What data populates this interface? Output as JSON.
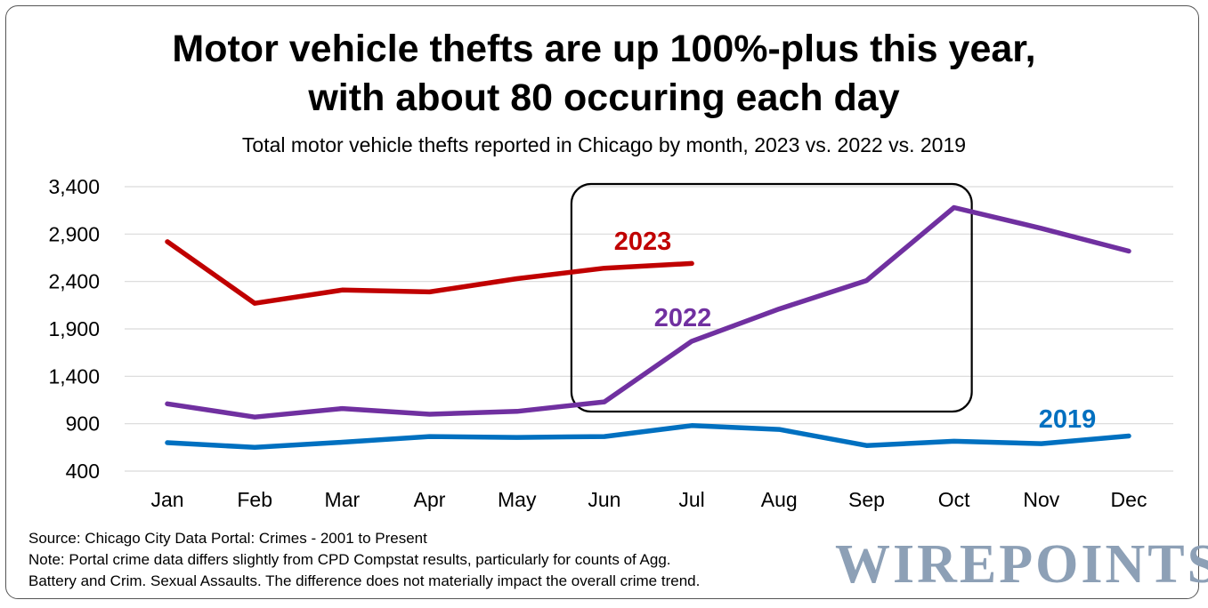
{
  "title_line1": "Motor vehicle thefts are up 100%-plus this year,",
  "title_line2": "with about 80 occuring each day",
  "subtitle": "Total motor vehicle thefts reported in Chicago by month, 2023 vs. 2022 vs. 2019",
  "footnotes": {
    "source": "Source: Chicago City Data Portal: Crimes - 2001 to Present",
    "note1": "Note: Portal crime data differs slightly from CPD Compstat results, particularly for counts of Agg.",
    "note2": "Battery and Crim. Sexual Assaults. The difference does not materially impact the overall crime trend."
  },
  "brand": "WIREPOINTS",
  "chart_data": {
    "type": "line",
    "categories": [
      "Jan",
      "Feb",
      "Mar",
      "Apr",
      "May",
      "Jun",
      "Jul",
      "Aug",
      "Sep",
      "Oct",
      "Nov",
      "Dec"
    ],
    "yticks": [
      "3,400",
      "2,900",
      "2,400",
      "1,900",
      "1,400",
      "900",
      "400"
    ],
    "ylim": [
      400,
      3400
    ],
    "grid": true,
    "series": [
      {
        "name": "2023",
        "color": "#c00000",
        "values": [
          2820,
          2170,
          2310,
          2290,
          2430,
          2540,
          2590,
          null,
          null,
          null,
          null,
          null
        ]
      },
      {
        "name": "2022",
        "color": "#7030a0",
        "values": [
          1110,
          970,
          1060,
          1000,
          1030,
          1130,
          1770,
          2110,
          2410,
          3180,
          2960,
          2720
        ]
      },
      {
        "name": "2019",
        "color": "#0070c0",
        "values": [
          700,
          650,
          705,
          765,
          755,
          765,
          880,
          840,
          670,
          715,
          690,
          770
        ]
      }
    ],
    "annotation": "rounded box highlighting Jun–Oct"
  }
}
